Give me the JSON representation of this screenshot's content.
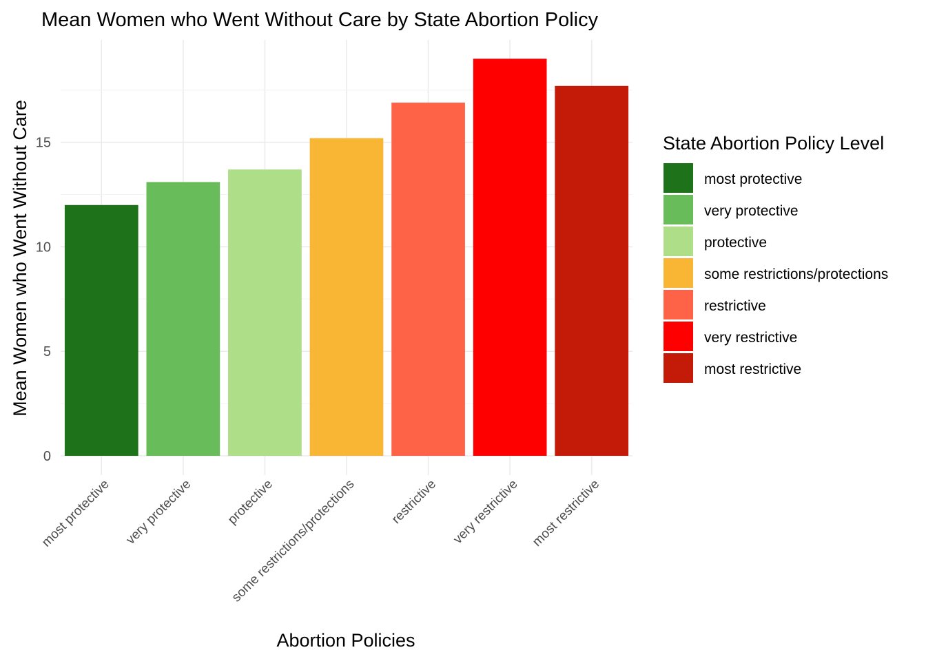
{
  "chart_data": {
    "type": "bar",
    "title": "Mean Women who Went Without Care by State Abortion Policy",
    "xlabel": "Abortion Policies",
    "ylabel": "Mean Women who Went Without Care",
    "categories": [
      "most protective",
      "very protective",
      "protective",
      "some restrictions/protections",
      "restrictive",
      "very restrictive",
      "most restrictive"
    ],
    "values": [
      12.0,
      13.1,
      13.7,
      15.2,
      16.9,
      19.0,
      17.7
    ],
    "colors": [
      "#1e7219",
      "#68bc5a",
      "#aedf88",
      "#f9b634",
      "#ff6347",
      "#ff0000",
      "#c41b09"
    ],
    "ylim": [
      0,
      19.9
    ],
    "yticks": [
      0,
      5,
      10,
      15
    ],
    "yticks_labels": [
      "0",
      "5",
      "10",
      "15"
    ],
    "grid": true,
    "legend": {
      "title": "State Abortion Policy Level",
      "position": "right",
      "entries": [
        "most protective",
        "very protective",
        "protective",
        "some restrictions/protections",
        "restrictive",
        "very restrictive",
        "most restrictive"
      ]
    }
  }
}
